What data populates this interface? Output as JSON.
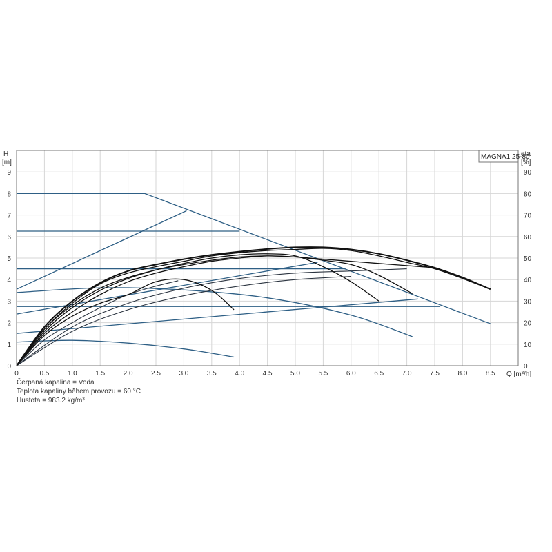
{
  "chart_data": {
    "type": "line",
    "model": "MAGNA1 25-80",
    "xlabel": "Q [m³/h]",
    "ylabel_left": [
      "H",
      "[m]"
    ],
    "ylabel_right": [
      "eta",
      "[%]"
    ],
    "xlim": [
      0,
      9.0
    ],
    "ylim_left": [
      0,
      10
    ],
    "ylim_right": [
      0,
      100
    ],
    "xticks": [
      "0",
      "0.5",
      "1.0",
      "1.5",
      "2.0",
      "2.5",
      "3.0",
      "3.5",
      "4.0",
      "4.5",
      "5.0",
      "5.5",
      "6.0",
      "6.5",
      "7.0",
      "7.5",
      "8.0",
      "8.5"
    ],
    "yticks_left": [
      "0",
      "1",
      "2",
      "3",
      "4",
      "5",
      "6",
      "7",
      "8",
      "9"
    ],
    "yticks_right": [
      "0",
      "10",
      "20",
      "30",
      "40",
      "50",
      "60",
      "70",
      "80",
      "90"
    ],
    "grid": true,
    "control_curves": [
      {
        "points": [
          [
            0,
            8.0
          ],
          [
            2.3,
            8.0
          ],
          [
            8.5,
            1.95
          ]
        ]
      },
      {
        "points": [
          [
            0,
            6.25
          ],
          [
            4.0,
            6.25
          ]
        ]
      },
      {
        "points": [
          [
            0,
            4.5
          ],
          [
            5.9,
            4.5
          ]
        ]
      },
      {
        "points": [
          [
            0,
            2.75
          ],
          [
            7.6,
            2.75
          ]
        ]
      },
      {
        "points": [
          [
            0,
            1.5
          ],
          [
            7.2,
            3.1
          ]
        ]
      },
      {
        "points": [
          [
            0,
            2.4
          ],
          [
            5.4,
            4.8
          ]
        ]
      },
      {
        "points": [
          [
            0,
            3.55
          ],
          [
            3.05,
            7.2
          ]
        ]
      },
      {
        "points": [
          [
            0,
            3.4
          ],
          [
            1.5,
            3.62
          ],
          [
            3.0,
            3.52
          ],
          [
            4.5,
            3.15
          ],
          [
            6.0,
            2.35
          ],
          [
            7.1,
            1.35
          ]
        ]
      },
      {
        "points": [
          [
            0,
            1.1
          ],
          [
            1.0,
            1.18
          ],
          [
            2.0,
            1.05
          ],
          [
            3.0,
            0.78
          ],
          [
            3.9,
            0.4
          ]
        ]
      }
    ],
    "efficiency_curves": [
      {
        "points": [
          [
            0,
            0
          ],
          [
            0.5,
            12
          ],
          [
            1.0,
            20
          ],
          [
            1.5,
            27
          ],
          [
            2.0,
            33
          ],
          [
            2.5,
            37
          ],
          [
            2.9,
            39.5
          ]
        ]
      },
      {
        "points": [
          [
            0,
            0
          ],
          [
            1.0,
            16
          ],
          [
            2.0,
            26
          ],
          [
            3.0,
            32.5
          ],
          [
            4.0,
            37
          ],
          [
            5.0,
            40
          ],
          [
            6.0,
            41.5
          ]
        ]
      },
      {
        "points": [
          [
            0,
            0
          ],
          [
            1.0,
            18
          ],
          [
            2.0,
            29
          ],
          [
            3.0,
            36
          ],
          [
            4.0,
            40.5
          ],
          [
            5.0,
            43
          ],
          [
            6.0,
            44
          ],
          [
            7.0,
            45
          ]
        ]
      }
    ],
    "pump_curves": [
      {
        "points": [
          [
            0,
            0
          ],
          [
            0.5,
            1.7
          ],
          [
            1.0,
            2.8
          ],
          [
            1.5,
            3.6
          ],
          [
            2.0,
            4.1
          ],
          [
            2.5,
            4.45
          ],
          [
            3.0,
            4.7
          ],
          [
            3.5,
            4.9
          ],
          [
            4.0,
            5.05
          ],
          [
            4.5,
            5.1
          ],
          [
            5.0,
            5.05
          ],
          [
            5.5,
            4.95
          ],
          [
            6.0,
            4.85
          ],
          [
            6.5,
            4.75
          ],
          [
            7.0,
            4.65
          ],
          [
            7.5,
            4.55
          ]
        ]
      },
      {
        "points": [
          [
            0,
            0
          ],
          [
            0.5,
            1.5
          ],
          [
            1.0,
            2.5
          ],
          [
            1.5,
            3.3
          ],
          [
            2.0,
            3.9
          ],
          [
            2.5,
            4.3
          ],
          [
            3.0,
            4.6
          ],
          [
            3.5,
            4.85
          ],
          [
            4.0,
            5.0
          ],
          [
            4.5,
            5.1
          ],
          [
            5.0,
            5.05
          ],
          [
            5.5,
            4.9
          ],
          [
            6.0,
            4.7
          ],
          [
            6.5,
            4.2
          ],
          [
            7.1,
            3.35
          ]
        ]
      },
      {
        "points": [
          [
            0,
            0
          ],
          [
            0.5,
            1.6
          ],
          [
            1.0,
            2.7
          ],
          [
            1.5,
            3.5
          ],
          [
            2.0,
            4.05
          ],
          [
            2.5,
            4.45
          ],
          [
            3.0,
            4.75
          ],
          [
            3.5,
            5.0
          ],
          [
            4.0,
            5.15
          ],
          [
            4.5,
            5.2
          ],
          [
            5.0,
            5.1
          ],
          [
            5.5,
            4.6
          ],
          [
            6.0,
            3.9
          ],
          [
            6.5,
            3.0
          ]
        ]
      },
      {
        "points": [
          [
            0,
            0
          ],
          [
            0.5,
            1.7
          ],
          [
            1.0,
            2.9
          ],
          [
            1.5,
            3.8
          ],
          [
            2.0,
            4.3
          ],
          [
            2.5,
            4.6
          ],
          [
            3.0,
            4.85
          ],
          [
            3.5,
            5.1
          ],
          [
            4.0,
            5.25
          ],
          [
            4.5,
            5.35
          ],
          [
            5.0,
            5.4
          ],
          [
            5.5,
            5.45
          ],
          [
            6.0,
            5.35
          ],
          [
            6.5,
            5.1
          ],
          [
            7.0,
            4.8
          ],
          [
            7.5,
            4.5
          ],
          [
            8.0,
            4.05
          ],
          [
            8.5,
            3.55
          ]
        ]
      },
      {
        "points": [
          [
            0,
            0
          ],
          [
            0.5,
            1.8
          ],
          [
            1.0,
            3.0
          ],
          [
            1.5,
            3.85
          ],
          [
            2.0,
            4.4
          ],
          [
            2.5,
            4.7
          ],
          [
            3.0,
            4.95
          ],
          [
            3.5,
            5.15
          ],
          [
            4.0,
            5.3
          ],
          [
            4.5,
            5.42
          ],
          [
            5.0,
            5.5
          ],
          [
            5.5,
            5.5
          ],
          [
            6.0,
            5.4
          ],
          [
            6.5,
            5.2
          ],
          [
            7.0,
            4.9
          ],
          [
            7.5,
            4.55
          ],
          [
            8.0,
            4.1
          ],
          [
            8.5,
            3.55
          ]
        ]
      },
      {
        "points": [
          [
            0,
            0
          ],
          [
            0.5,
            1.4
          ],
          [
            1.0,
            2.3
          ],
          [
            1.5,
            2.9
          ],
          [
            2.0,
            3.3
          ],
          [
            2.5,
            3.9
          ],
          [
            3.0,
            4.0
          ],
          [
            3.5,
            3.5
          ],
          [
            3.9,
            2.6
          ]
        ]
      }
    ]
  },
  "info": {
    "line1": "Čerpaná kapalina = Voda",
    "line2": "Teplota kapaliny během provozu = 60 °C",
    "line3": "Hustota = 983.2 kg/m³"
  }
}
